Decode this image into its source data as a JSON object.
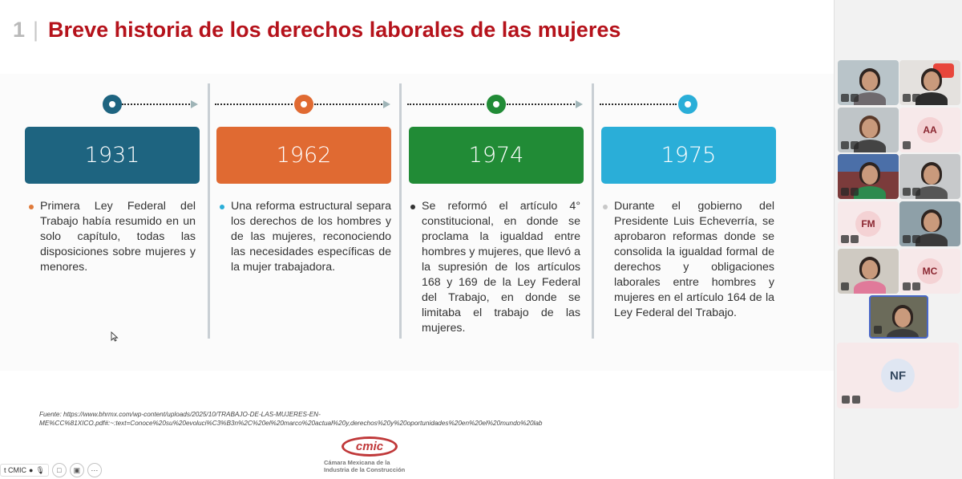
{
  "slide": {
    "number": "1",
    "separator": "|",
    "title": "Breve historia de los derechos laborales de las mujeres",
    "colors": {
      "title": "#b5121b",
      "c1931": "#1e6480",
      "c1962": "#e06a32",
      "c1974": "#218b36",
      "c1975": "#2aaed8"
    },
    "timeline": [
      {
        "year": "1931",
        "text": "Primera Ley Federal del Trabajo había resumido en un solo capítulo, todas las disposiciones sobre mujeres y menores."
      },
      {
        "year": "1962",
        "text": "Una reforma estructural separa los derechos de los hombres y de las mujeres, reconociendo las necesidades específicas de la mujer trabajadora."
      },
      {
        "year": "1974",
        "text": "Se reformó el artículo 4° constitucional, en donde se proclama la igualdad entre hombres y mujeres, que llevó a la supresión de los artículos 168 y 169 de la Ley Federal del Trabajo, en donde se limitaba el trabajo de las mujeres."
      },
      {
        "year": "1975",
        "text": "Durante el gobierno del Presidente Luis Echeverría, se aprobaron reformas donde se consolida la igualdad formal de derechos y obligaciones laborales entre hombres y mujeres en el artículo 164 de la Ley Federal del Trabajo."
      }
    ],
    "source_line1": "Fuente:  https://www.bhrmx.com/wp-content/uploads/2025/10/TRABAJO-DE-LAS-MUJERES-EN-",
    "source_line2": "ME%CC%81XICO.pdf#:~:text=Conoce%20su%20evoluci%C3%B3n%2C%20el%20marco%20actual%20y,derechos%20y%20oportunidades%20en%20el%20mundo%20lab",
    "logo": {
      "mark": "cmic",
      "line1": "Cámara Mexicana de la",
      "line2": "Industria de la Construcción"
    }
  },
  "bottom_bar": {
    "name_chip": "t CMIC"
  },
  "participants": {
    "initials": {
      "aa": "AA",
      "fm": "FM",
      "mc": "MC",
      "nf": "NF"
    }
  }
}
